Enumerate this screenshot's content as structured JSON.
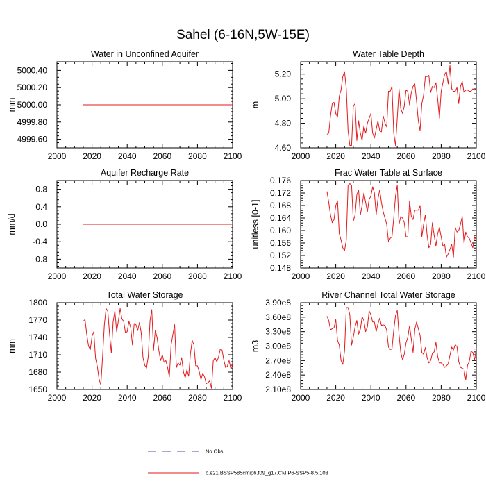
{
  "suptitle": "Sahel (6-16N,5W-15E)",
  "legend": {
    "entries": [
      {
        "label": "No Obs",
        "color": "#5a4fa0",
        "dash": true
      },
      {
        "label": "b.e21.BSSP585cmip6.f09_g17.CMIP6-SSP5-8.5.103",
        "color": "#e31a1c",
        "dash": false
      }
    ]
  },
  "chart_data": [
    {
      "type": "line",
      "title": "Water in Unconfined Aquifer",
      "ylabel": "mm",
      "xlim": [
        2000,
        2100
      ],
      "ylim": [
        4999.5,
        5000.5
      ],
      "xticks": [
        2000,
        2020,
        2040,
        2060,
        2080,
        2100
      ],
      "yticks": [
        4999.6,
        4999.8,
        5000.0,
        5000.2,
        5000.4
      ],
      "ytick_labels": [
        "4999.60",
        "4999.80",
        "5000.00",
        "5000.20",
        "5000.40"
      ],
      "color": "#e31a1c",
      "series": [
        {
          "x_start": 2015,
          "x_step": 1,
          "values": [
            5000.0,
            5000.0,
            5000.0,
            5000.0,
            5000.0,
            5000.0,
            5000.0,
            5000.0,
            5000.0,
            5000.0,
            5000.0,
            5000.0,
            5000.0,
            5000.0,
            5000.0,
            5000.0,
            5000.0,
            5000.0,
            5000.0,
            5000.0,
            5000.0,
            5000.0,
            5000.0,
            5000.0,
            5000.0,
            5000.0,
            5000.0,
            5000.0,
            5000.0,
            5000.0,
            5000.0,
            5000.0,
            5000.0,
            5000.0,
            5000.0,
            5000.0,
            5000.0,
            5000.0,
            5000.0,
            5000.0,
            5000.0,
            5000.0,
            5000.0,
            5000.0,
            5000.0,
            5000.0,
            5000.0,
            5000.0,
            5000.0,
            5000.0,
            5000.0,
            5000.0,
            5000.0,
            5000.0,
            5000.0,
            5000.0,
            5000.0,
            5000.0,
            5000.0,
            5000.0,
            5000.0,
            5000.0,
            5000.0,
            5000.0,
            5000.0,
            5000.0,
            5000.0,
            5000.0,
            5000.0,
            5000.0,
            5000.0,
            5000.0,
            5000.0,
            5000.0,
            5000.0,
            5000.0,
            5000.0,
            5000.0,
            5000.0,
            5000.0,
            5000.0,
            5000.0,
            5000.0,
            5000.0,
            5000.0,
            5000.0
          ]
        }
      ]
    },
    {
      "type": "line",
      "title": "Water Table Depth",
      "ylabel": "m",
      "xlim": [
        2000,
        2100
      ],
      "ylim": [
        4.6,
        5.3
      ],
      "xticks": [
        2000,
        2020,
        2040,
        2060,
        2080,
        2100
      ],
      "yticks": [
        4.6,
        4.8,
        5.0,
        5.2
      ],
      "ytick_labels": [
        "4.60",
        "4.80",
        "5.00",
        "5.20"
      ],
      "color": "#e31a1c",
      "series": [
        {
          "x_start": 2015,
          "x_step": 1,
          "values": [
            4.71,
            4.72,
            4.86,
            4.96,
            4.97,
            4.88,
            4.85,
            5.02,
            5.07,
            5.18,
            5.22,
            5.08,
            4.74,
            4.62,
            4.62,
            4.94,
            4.96,
            4.66,
            4.82,
            4.72,
            4.66,
            4.78,
            4.72,
            4.8,
            4.84,
            4.88,
            4.72,
            4.68,
            4.75,
            4.82,
            4.74,
            4.73,
            4.86,
            4.8,
            4.77,
            5.06,
            5.06,
            5.1,
            4.72,
            4.62,
            4.84,
            5.08,
            4.92,
            4.88,
            4.94,
            5.07,
            5.06,
            4.95,
            5.05,
            5.1,
            5.12,
            4.98,
            4.82,
            4.74,
            4.96,
            5.03,
            5.18,
            5.18,
            5.19,
            5.05,
            5.1,
            5.09,
            5.13,
            5.0,
            4.84,
            5.06,
            5.13,
            5.2,
            5.22,
            5.12,
            5.27,
            5.08,
            5.06,
            5.06,
            5.09,
            4.96,
            5.1,
            5.14,
            5.05,
            5.07,
            5.07,
            5.06,
            5.06,
            5.08,
            5.07,
            5.08
          ]
        }
      ]
    },
    {
      "type": "line",
      "title": "Aquifer Recharge Rate",
      "ylabel": "mm/d",
      "xlim": [
        2000,
        2100
      ],
      "ylim": [
        -1.0,
        1.0
      ],
      "xticks": [
        2000,
        2020,
        2040,
        2060,
        2080,
        2100
      ],
      "yticks": [
        -0.8,
        -0.4,
        0.0,
        0.4,
        0.8
      ],
      "ytick_labels": [
        "-0.8",
        "-0.4",
        "0.0",
        "0.4",
        "0.8"
      ],
      "color": "#e31a1c",
      "series": [
        {
          "x_start": 2015,
          "x_step": 1,
          "values": [
            0.0,
            0.0,
            0.0,
            0.0,
            0.0,
            0.0,
            0.0,
            0.0,
            0.0,
            0.0,
            0.0,
            0.0,
            0.0,
            0.0,
            0.0,
            0.0,
            0.0,
            0.0,
            0.0,
            0.0,
            0.0,
            0.0,
            0.0,
            0.0,
            0.0,
            0.0,
            0.0,
            0.0,
            0.0,
            0.0,
            0.0,
            0.0,
            0.0,
            0.0,
            0.0,
            0.0,
            0.0,
            0.0,
            0.0,
            0.0,
            0.0,
            0.0,
            0.0,
            0.0,
            0.0,
            0.0,
            0.0,
            0.0,
            0.0,
            0.0,
            0.0,
            0.0,
            0.0,
            0.0,
            0.0,
            0.0,
            0.0,
            0.0,
            0.0,
            0.0,
            0.0,
            0.0,
            0.0,
            0.0,
            0.0,
            0.0,
            0.0,
            0.0,
            0.0,
            0.0,
            0.0,
            0.0,
            0.0,
            0.0,
            0.0,
            0.0,
            0.0,
            0.0,
            0.0,
            0.0,
            0.0,
            0.0,
            0.0,
            0.0,
            0.0,
            0.0
          ]
        }
      ]
    },
    {
      "type": "line",
      "title": "Frac Water Table at Surface",
      "ylabel": "unitless [0-1]",
      "xlim": [
        2000,
        2100
      ],
      "ylim": [
        0.148,
        0.176
      ],
      "xticks": [
        2000,
        2020,
        2040,
        2060,
        2080,
        2100
      ],
      "yticks": [
        0.148,
        0.152,
        0.156,
        0.16,
        0.164,
        0.168,
        0.172,
        0.176
      ],
      "ytick_labels": [
        "0.148",
        "0.152",
        "0.156",
        "0.160",
        "0.164",
        "0.168",
        "0.172",
        "0.176"
      ],
      "color": "#e31a1c",
      "series": [
        {
          "x_start": 2015,
          "x_step": 1,
          "values": [
            0.1725,
            0.169,
            0.165,
            0.1625,
            0.1635,
            0.168,
            0.1695,
            0.159,
            0.157,
            0.1545,
            0.1535,
            0.157,
            0.1745,
            0.175,
            0.1745,
            0.163,
            0.165,
            0.1715,
            0.173,
            0.165,
            0.168,
            0.172,
            0.169,
            0.166,
            0.17,
            0.171,
            0.174,
            0.172,
            0.165,
            0.17,
            0.173,
            0.169,
            0.166,
            0.164,
            0.162,
            0.1565,
            0.1575,
            0.158,
            0.164,
            0.171,
            0.1745,
            0.162,
            0.1645,
            0.164,
            0.1625,
            0.158,
            0.158,
            0.1695,
            0.1645,
            0.1635,
            0.1665,
            0.1665,
            0.1665,
            0.168,
            0.158,
            0.162,
            0.165,
            0.1585,
            0.1545,
            0.1555,
            0.1625,
            0.1585,
            0.155,
            0.159,
            0.161,
            0.158,
            0.155,
            0.1555,
            0.1515,
            0.1525,
            0.154,
            0.1555,
            0.1515,
            0.161,
            0.1595,
            0.16,
            0.162,
            0.1645,
            0.156,
            0.1595,
            0.158,
            0.1575,
            0.156,
            0.1545,
            0.158,
            0.157
          ]
        }
      ]
    },
    {
      "type": "line",
      "title": "Total Water Storage",
      "ylabel": "mm",
      "xlim": [
        2000,
        2100
      ],
      "ylim": [
        1650,
        1800
      ],
      "xticks": [
        2000,
        2020,
        2040,
        2060,
        2080,
        2100
      ],
      "yticks": [
        1650,
        1680,
        1710,
        1740,
        1770,
        1800
      ],
      "ytick_labels": [
        "1650",
        "1680",
        "1710",
        "1740",
        "1770",
        "1800"
      ],
      "color": "#e31a1c",
      "series": [
        {
          "x_start": 2015,
          "x_step": 1,
          "values": [
            1768,
            1771,
            1745,
            1725,
            1719,
            1742,
            1750,
            1704,
            1690,
            1668,
            1658,
            1707,
            1762,
            1790,
            1785,
            1745,
            1713,
            1767,
            1786,
            1750,
            1769,
            1790,
            1772,
            1768,
            1748,
            1750,
            1768,
            1757,
            1727,
            1764,
            1762,
            1752,
            1766,
            1748,
            1705,
            1692,
            1687,
            1707,
            1769,
            1788,
            1718,
            1752,
            1740,
            1718,
            1700,
            1710,
            1697,
            1700,
            1688,
            1672,
            1727,
            1745,
            1762,
            1688,
            1696,
            1692,
            1705,
            1681,
            1670,
            1684,
            1673,
            1712,
            1735,
            1727,
            1691,
            1691,
            1681,
            1667,
            1678,
            1672,
            1660,
            1662,
            1665,
            1652,
            1700,
            1705,
            1698,
            1706,
            1720,
            1718,
            1701,
            1688,
            1690,
            1700,
            1686,
            1692
          ]
        }
      ]
    },
    {
      "type": "line",
      "title": "River Channel Total Water Storage",
      "ylabel": "m3",
      "xlim": [
        2000,
        2100
      ],
      "ylim": [
        210000000,
        390000000
      ],
      "xticks": [
        2000,
        2020,
        2040,
        2060,
        2080,
        2100
      ],
      "yticks": [
        210000000,
        240000000,
        270000000,
        300000000,
        330000000,
        360000000,
        390000000
      ],
      "ytick_labels": [
        "2.10e8",
        "2.40e8",
        "2.70e8",
        "3.00e8",
        "3.30e8",
        "3.60e8",
        "3.90e8"
      ],
      "color": "#e31a1c",
      "series": [
        {
          "x_start": 2015,
          "x_step": 1,
          "values": [
            362000000,
            353000000,
            334000000,
            336000000,
            338000000,
            355000000,
            312000000,
            302000000,
            270000000,
            262000000,
            290000000,
            380000000,
            380000000,
            365000000,
            302000000,
            319000000,
            340000000,
            353000000,
            325000000,
            335000000,
            361000000,
            353000000,
            330000000,
            340000000,
            373000000,
            365000000,
            350000000,
            350000000,
            330000000,
            346000000,
            358000000,
            343000000,
            344000000,
            343000000,
            333000000,
            298000000,
            293000000,
            294000000,
            333000000,
            363000000,
            374000000,
            324000000,
            287000000,
            272000000,
            283000000,
            307000000,
            318000000,
            342000000,
            315000000,
            287000000,
            335000000,
            350000000,
            336000000,
            322000000,
            287000000,
            283000000,
            297000000,
            276000000,
            265000000,
            270000000,
            285000000,
            288000000,
            308000000,
            279000000,
            265000000,
            265000000,
            262000000,
            256000000,
            259000000,
            263000000,
            281000000,
            298000000,
            292000000,
            303000000,
            299000000,
            268000000,
            256000000,
            254000000,
            252000000,
            230000000,
            260000000,
            268000000,
            289000000,
            287000000,
            271000000,
            296000000
          ]
        }
      ]
    }
  ]
}
